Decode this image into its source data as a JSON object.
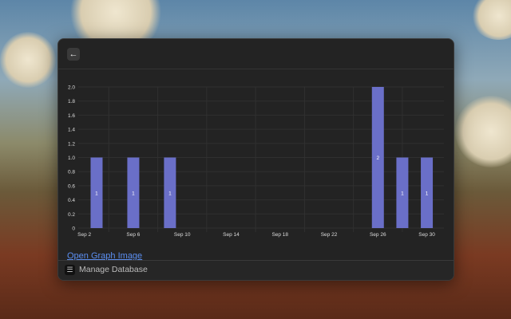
{
  "header": {
    "back_icon": "arrow-left-icon"
  },
  "chart_data": {
    "type": "bar",
    "x": [
      "Sep 3",
      "Sep 6",
      "Sep 9",
      "Sep 26",
      "Sep 28",
      "Sep 30"
    ],
    "values": [
      1,
      1,
      1,
      2,
      1,
      1
    ],
    "data_labels": [
      "1",
      "1",
      "1",
      "2",
      "1",
      "1"
    ],
    "x_tick_labels": [
      "Sep 2",
      "Sep 6",
      "Sep 10",
      "Sep 14",
      "Sep 18",
      "Sep 22",
      "Sep 26",
      "Sep 30"
    ],
    "y_tick_labels": [
      "0",
      "0.2",
      "0.4",
      "0.6",
      "0.8",
      "1.0",
      "1.2",
      "1.4",
      "1.6",
      "1.8",
      "2.0"
    ],
    "xlim": [
      "Sep 1",
      "Sep 31"
    ],
    "ylim": [
      0,
      2
    ],
    "grid": true,
    "bar_color": "#6a6fc8",
    "title": "",
    "xlabel": "",
    "ylabel": ""
  },
  "link": {
    "label": "Open Graph Image",
    "color": "#5b8ef0"
  },
  "footer": {
    "icon": "database-icon",
    "label": "Manage Database"
  }
}
